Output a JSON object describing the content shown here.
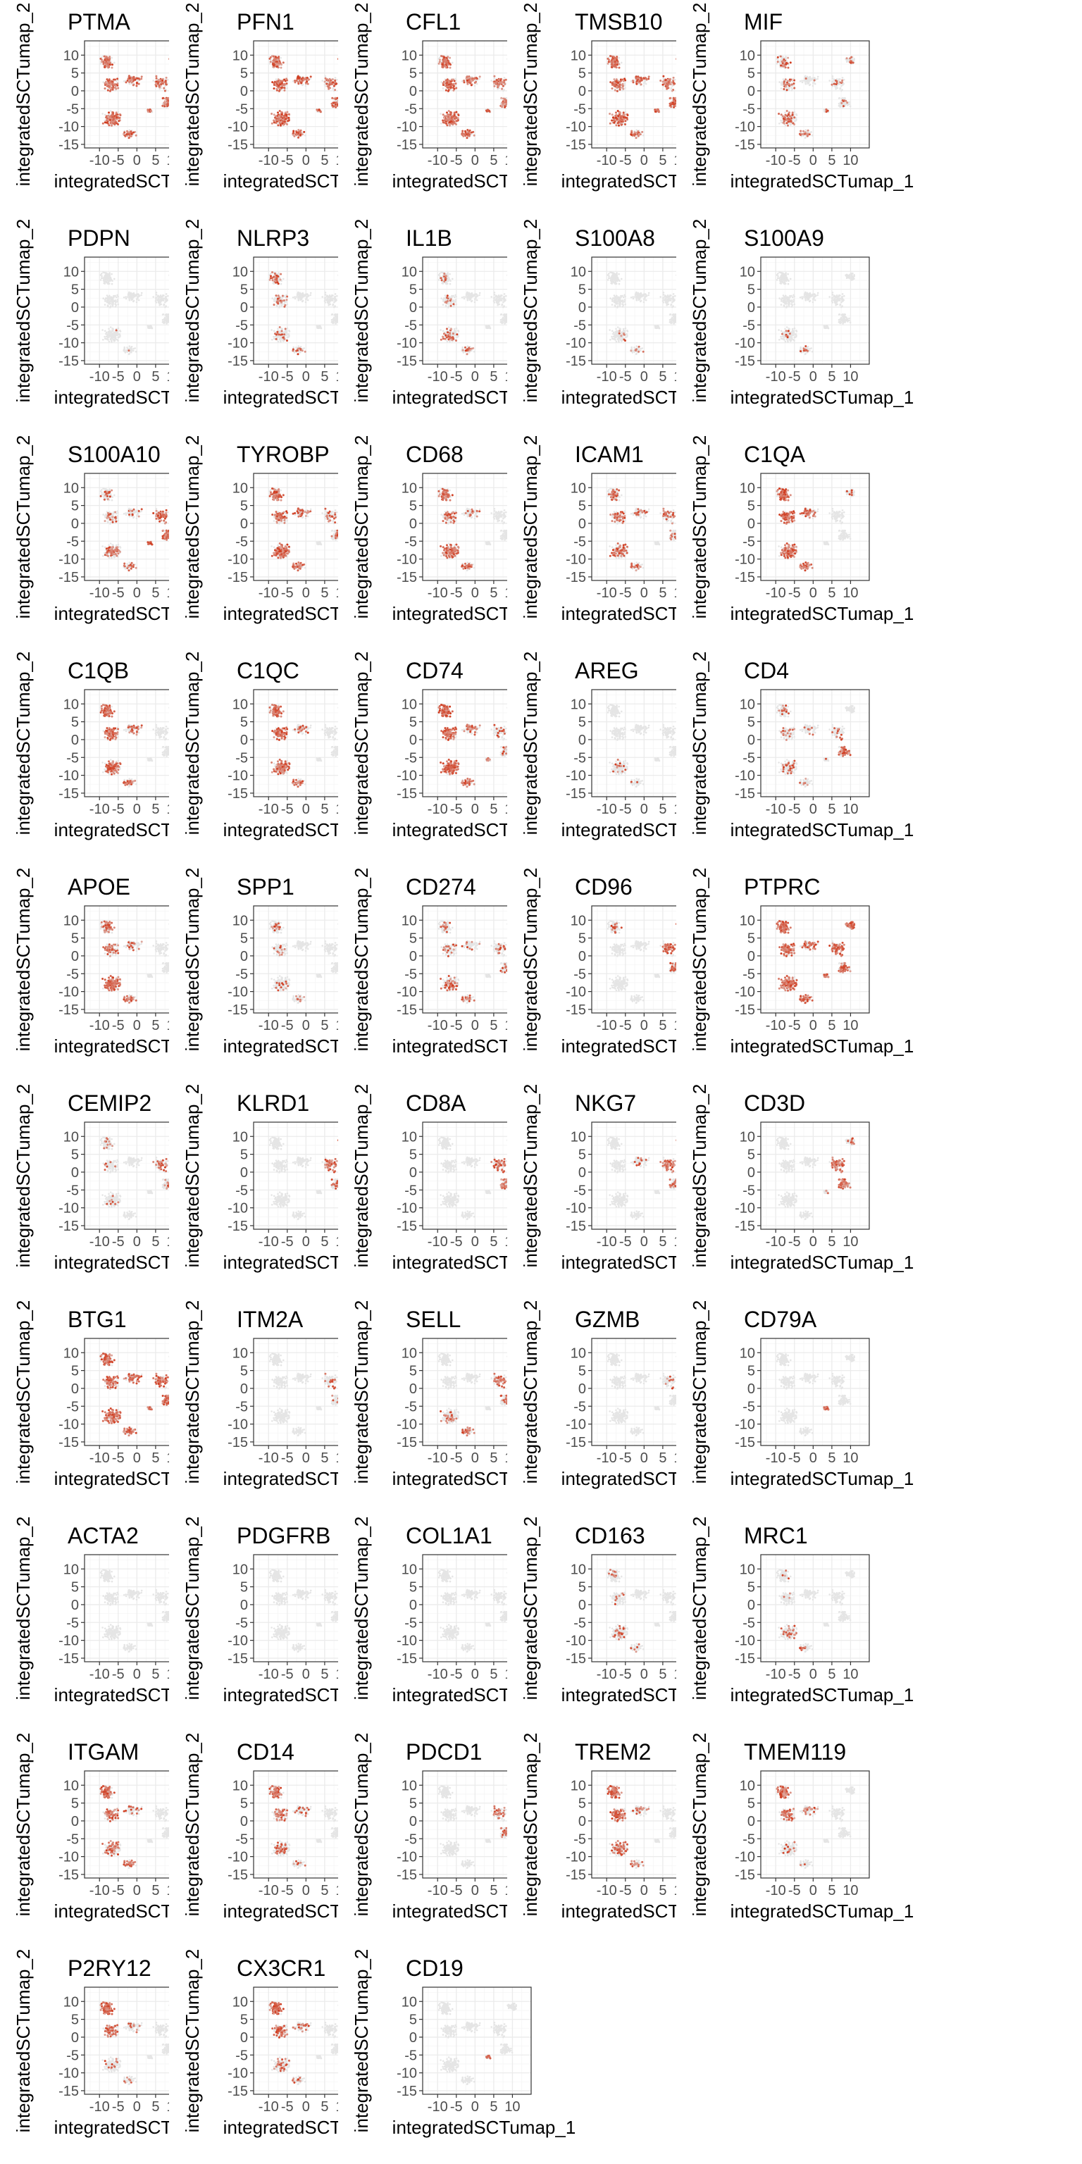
{
  "chart_data": {
    "type": "scatter",
    "layout": "facet-grid",
    "columns": 5,
    "x_axis_label": "integratedSCTumap_1",
    "y_axis_label": "integratedSCTumap_2",
    "x_ticks": [
      -10,
      -5,
      0,
      5,
      10
    ],
    "x_tick_labels": [
      "-10",
      "-5",
      "0",
      "5",
      "10"
    ],
    "y_ticks": [
      10,
      5,
      0,
      -5,
      -10,
      -15
    ],
    "y_tick_labels": [
      "10",
      "5",
      "0",
      "-5",
      "-10",
      "-15"
    ],
    "xlim": [
      -14,
      15
    ],
    "ylim": [
      -16,
      14
    ],
    "low_color": "#e5e5e5",
    "high_color": "#d0391c",
    "panels": [
      {
        "gene": "PTMA",
        "title": "PTMA"
      },
      {
        "gene": "PFN1",
        "title": "PFN1"
      },
      {
        "gene": "CFL1",
        "title": "CFL1"
      },
      {
        "gene": "TMSB10",
        "title": "TMSB10"
      },
      {
        "gene": "MIF",
        "title": "MIF"
      },
      {
        "gene": "PDPN",
        "title": "PDPN"
      },
      {
        "gene": "NLRP3",
        "title": "NLRP3"
      },
      {
        "gene": "IL1B",
        "title": "IL1B"
      },
      {
        "gene": "S100A8",
        "title": "S100A8"
      },
      {
        "gene": "S100A9",
        "title": "S100A9"
      },
      {
        "gene": "S100A10",
        "title": "S100A10"
      },
      {
        "gene": "TYROBP",
        "title": "TYROBP"
      },
      {
        "gene": "CD68",
        "title": "CD68"
      },
      {
        "gene": "ICAM1",
        "title": "ICAM1"
      },
      {
        "gene": "C1QA",
        "title": "C1QA"
      },
      {
        "gene": "C1QB",
        "title": "C1QB"
      },
      {
        "gene": "C1QC",
        "title": "C1QC"
      },
      {
        "gene": "CD74",
        "title": "CD74"
      },
      {
        "gene": "AREG",
        "title": "AREG"
      },
      {
        "gene": "CD4",
        "title": "CD4"
      },
      {
        "gene": "APOE",
        "title": "APOE"
      },
      {
        "gene": "SPP1",
        "title": "SPP1"
      },
      {
        "gene": "CD274",
        "title": "CD274"
      },
      {
        "gene": "CD96",
        "title": "CD96"
      },
      {
        "gene": "PTPRC",
        "title": "PTPRC"
      },
      {
        "gene": "CEMIP2",
        "title": "CEMIP2"
      },
      {
        "gene": "KLRD1",
        "title": "KLRD1"
      },
      {
        "gene": "CD8A",
        "title": "CD8A"
      },
      {
        "gene": "NKG7",
        "title": "NKG7"
      },
      {
        "gene": "CD3D",
        "title": "CD3D"
      },
      {
        "gene": "BTG1",
        "title": "BTG1"
      },
      {
        "gene": "ITM2A",
        "title": "ITM2A"
      },
      {
        "gene": "SELL",
        "title": "SELL"
      },
      {
        "gene": "GZMB",
        "title": "GZMB"
      },
      {
        "gene": "CD79A",
        "title": "CD79A"
      },
      {
        "gene": "ACTA2",
        "title": "ACTA2"
      },
      {
        "gene": "PDGFRB",
        "title": "PDGFRB"
      },
      {
        "gene": "COL1A1",
        "title": "COL1A1"
      },
      {
        "gene": "CD163",
        "title": "CD163"
      },
      {
        "gene": "MRC1",
        "title": "MRC1"
      },
      {
        "gene": "ITGAM",
        "title": "ITGAM"
      },
      {
        "gene": "CD14",
        "title": "CD14"
      },
      {
        "gene": "PDCD1",
        "title": "PDCD1"
      },
      {
        "gene": "TREM2",
        "title": "TREM2"
      },
      {
        "gene": "TMEM119",
        "title": "TMEM119"
      },
      {
        "gene": "P2RY12",
        "title": "P2RY12"
      },
      {
        "gene": "CX3CR1",
        "title": "CX3CR1"
      },
      {
        "gene": "CD19",
        "title": "CD19"
      }
    ]
  }
}
